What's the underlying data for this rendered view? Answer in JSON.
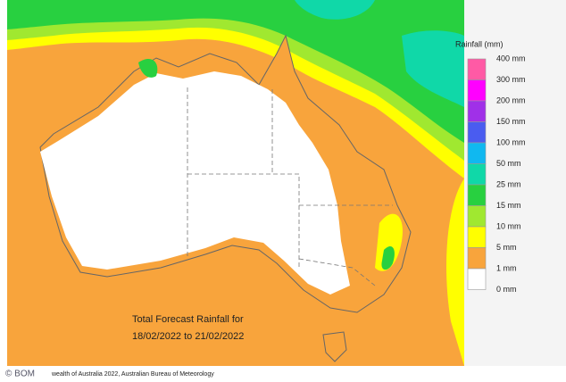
{
  "map": {
    "caption": [
      "Total Forecast Rainfall for",
      "18/02/2022 to 21/02/2022"
    ],
    "legend": {
      "title": "Rainfall (mm)",
      "labels": [
        "400 mm",
        "300 mm",
        "200 mm",
        "150 mm",
        "100 mm",
        "50 mm",
        "25 mm",
        "15 mm",
        "10 mm",
        "5 mm",
        "1 mm",
        "0 mm"
      ],
      "colors": [
        "#ff5aa5",
        "#ff00ff",
        "#a030e8",
        "#4a5cf0",
        "#10b8f0",
        "#10d8a8",
        "#28d040",
        "#a0e830",
        "#ffff00",
        "#f8a43c",
        "#ffffff"
      ]
    }
  },
  "footer": {
    "source": "© BOM",
    "copyright": "wealth of Australia 2022, Australian Bureau of Meteorology"
  }
}
